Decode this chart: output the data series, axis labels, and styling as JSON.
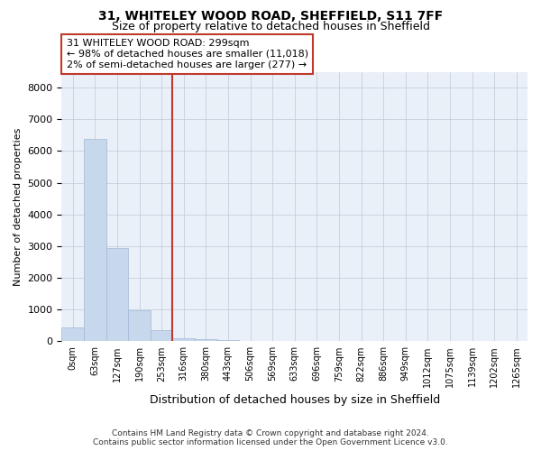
{
  "title": "31, WHITELEY WOOD ROAD, SHEFFIELD, S11 7FF",
  "subtitle": "Size of property relative to detached houses in Sheffield",
  "xlabel": "Distribution of detached houses by size in Sheffield",
  "ylabel": "Number of detached properties",
  "categories": [
    "0sqm",
    "63sqm",
    "127sqm",
    "190sqm",
    "253sqm",
    "316sqm",
    "380sqm",
    "443sqm",
    "506sqm",
    "569sqm",
    "633sqm",
    "696sqm",
    "759sqm",
    "822sqm",
    "886sqm",
    "949sqm",
    "1012sqm",
    "1075sqm",
    "1139sqm",
    "1202sqm",
    "1265sqm"
  ],
  "values": [
    430,
    6380,
    2950,
    970,
    360,
    100,
    60,
    30,
    10,
    5,
    3,
    2,
    2,
    1,
    1,
    1,
    1,
    0,
    0,
    0,
    0
  ],
  "bar_color": "#c8d8ec",
  "bar_edge_color": "#a0b8d8",
  "property_line_x": 4.5,
  "annotation_text": "31 WHITELEY WOOD ROAD: 299sqm\n← 98% of detached houses are smaller (11,018)\n2% of semi-detached houses are larger (277) →",
  "annotation_box_color": "#c0392b",
  "ylim": [
    0,
    8500
  ],
  "yticks": [
    0,
    1000,
    2000,
    3000,
    4000,
    5000,
    6000,
    7000,
    8000
  ],
  "footer": "Contains HM Land Registry data © Crown copyright and database right 2024.\nContains public sector information licensed under the Open Government Licence v3.0.",
  "bg_color": "#ffffff",
  "plot_bg_color": "#eaf0f8",
  "grid_color": "#c0c8d8"
}
